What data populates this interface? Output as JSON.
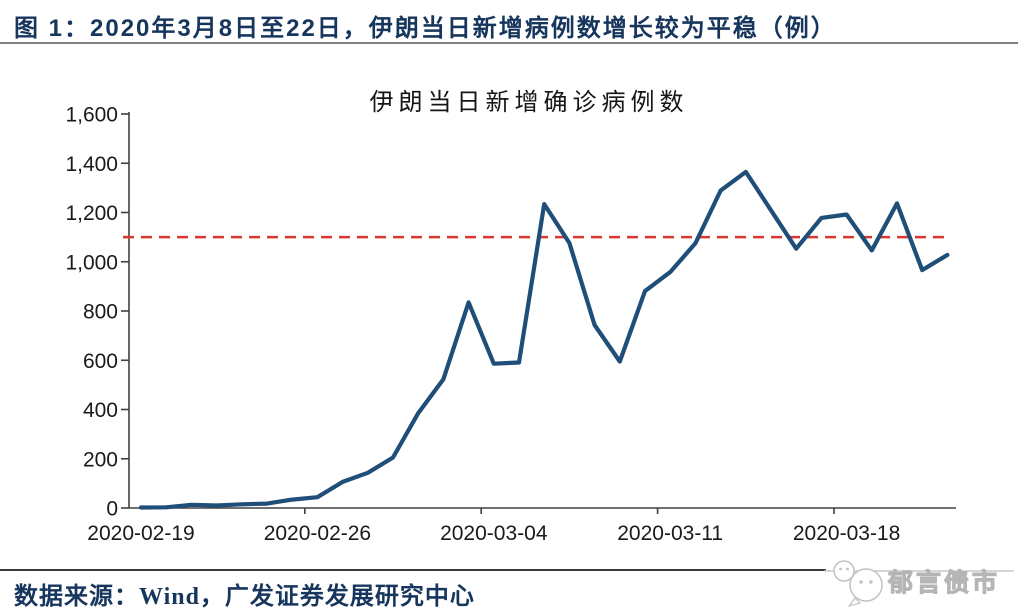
{
  "header": {
    "title": "图 1：2020年3月8日至22日，伊朗当日新增病例数增长较为平稳（例）"
  },
  "chart_data": {
    "type": "line",
    "title": "伊朗当日新增确诊病例数",
    "xlabel": "",
    "ylabel": "",
    "legend": "none",
    "grid": false,
    "ylim": [
      0,
      1600
    ],
    "y_ticks": [
      0,
      200,
      400,
      600,
      800,
      1000,
      1200,
      1400,
      1600
    ],
    "y_tick_labels": [
      "0",
      "200",
      "400",
      "600",
      "800",
      "1,000",
      "1,200",
      "1,400",
      "1,600"
    ],
    "x_tick_labels": [
      "2020-02-19",
      "2020-02-26",
      "2020-03-04",
      "2020-03-11",
      "2020-03-18"
    ],
    "x": [
      "2020-02-19",
      "2020-02-20",
      "2020-02-21",
      "2020-02-22",
      "2020-02-23",
      "2020-02-24",
      "2020-02-25",
      "2020-02-26",
      "2020-02-27",
      "2020-02-28",
      "2020-02-29",
      "2020-03-01",
      "2020-03-02",
      "2020-03-03",
      "2020-03-04",
      "2020-03-05",
      "2020-03-06",
      "2020-03-07",
      "2020-03-08",
      "2020-03-09",
      "2020-03-10",
      "2020-03-11",
      "2020-03-12",
      "2020-03-13",
      "2020-03-14",
      "2020-03-15",
      "2020-03-16",
      "2020-03-17",
      "2020-03-18",
      "2020-03-19",
      "2020-03-20",
      "2020-03-21",
      "2020-03-22"
    ],
    "values": [
      2,
      3,
      13,
      10,
      15,
      18,
      34,
      44,
      106,
      143,
      205,
      385,
      523,
      835,
      586,
      591,
      1234,
      1076,
      743,
      595,
      881,
      958,
      1075,
      1289,
      1365,
      1209,
      1053,
      1178,
      1192,
      1046,
      1237,
      966,
      1028
    ],
    "line_color": "#1F4E79",
    "axis_color": "#404040",
    "tick_label_color": "#1a1a1a",
    "reference_line": {
      "value": 1100,
      "style": "dashed",
      "color": "#D8382F"
    }
  },
  "footer": {
    "source": "数据来源：Wind，广发证券发展研究中心",
    "watermark": "郁言债市"
  }
}
